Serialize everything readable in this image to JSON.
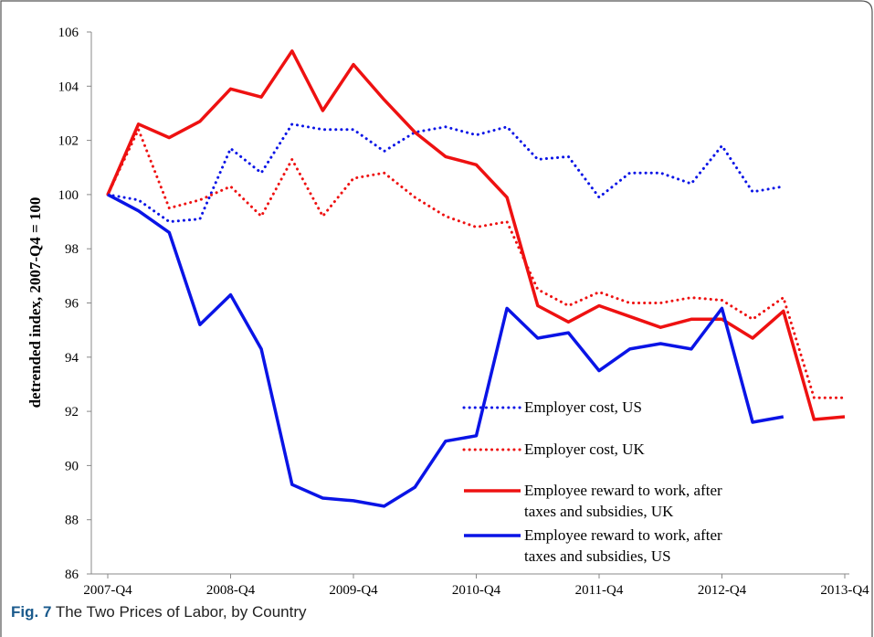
{
  "chart_data": {
    "type": "line",
    "y_label": "detrended index, 2007-Q4 = 100",
    "caption": {
      "label": "Fig. 7",
      "text": "The Two Prices of Labor, by Country"
    },
    "categories": [
      "2007-Q4",
      null,
      null,
      null,
      "2008-Q4",
      null,
      null,
      null,
      "2009-Q4",
      null,
      null,
      null,
      "2010-Q4",
      null,
      null,
      null,
      "2011-Q4",
      null,
      null,
      null,
      "2012-Q4",
      null,
      null,
      null,
      "2013-Q4"
    ],
    "ylim": [
      86,
      106
    ],
    "yticks": [
      86,
      88,
      90,
      92,
      94,
      96,
      98,
      100,
      102,
      104,
      106
    ],
    "series": [
      {
        "name": "Employer cost, US",
        "color": "#0a14e6",
        "style": "dotted",
        "values": [
          100,
          99.8,
          99.0,
          99.1,
          101.7,
          100.8,
          102.6,
          102.4,
          102.4,
          101.6,
          102.3,
          102.5,
          102.2,
          102.5,
          101.3,
          101.4,
          99.9,
          100.8,
          100.8,
          100.4,
          101.8,
          100.1,
          100.3,
          null,
          null
        ]
      },
      {
        "name": "Employer cost, UK",
        "color": "#ee1111",
        "style": "dotted",
        "values": [
          100,
          102.4,
          99.5,
          99.8,
          100.3,
          99.2,
          101.3,
          99.2,
          100.6,
          100.8,
          99.9,
          99.2,
          98.8,
          99.0,
          96.5,
          95.9,
          96.4,
          96.0,
          96.0,
          96.2,
          96.1,
          95.4,
          96.2,
          92.5,
          92.5
        ]
      },
      {
        "name": "Employee reward to work, after taxes and subsidies, UK",
        "color": "#ee1111",
        "style": "solid",
        "values": [
          100,
          102.6,
          102.1,
          102.7,
          103.9,
          103.6,
          105.3,
          103.1,
          104.8,
          103.5,
          102.3,
          101.4,
          101.1,
          99.9,
          95.9,
          95.3,
          95.9,
          95.5,
          95.1,
          95.4,
          95.4,
          94.7,
          95.7,
          91.7,
          91.8
        ]
      },
      {
        "name": "Employee reward to work, after taxes and subsidies, US",
        "color": "#0a14e6",
        "style": "solid",
        "values": [
          100,
          99.4,
          98.6,
          95.2,
          96.3,
          94.3,
          89.3,
          88.8,
          88.7,
          88.5,
          89.2,
          90.9,
          91.1,
          95.8,
          94.7,
          94.9,
          93.5,
          94.3,
          94.5,
          94.3,
          95.8,
          91.6,
          91.8,
          null,
          null
        ]
      }
    ]
  }
}
